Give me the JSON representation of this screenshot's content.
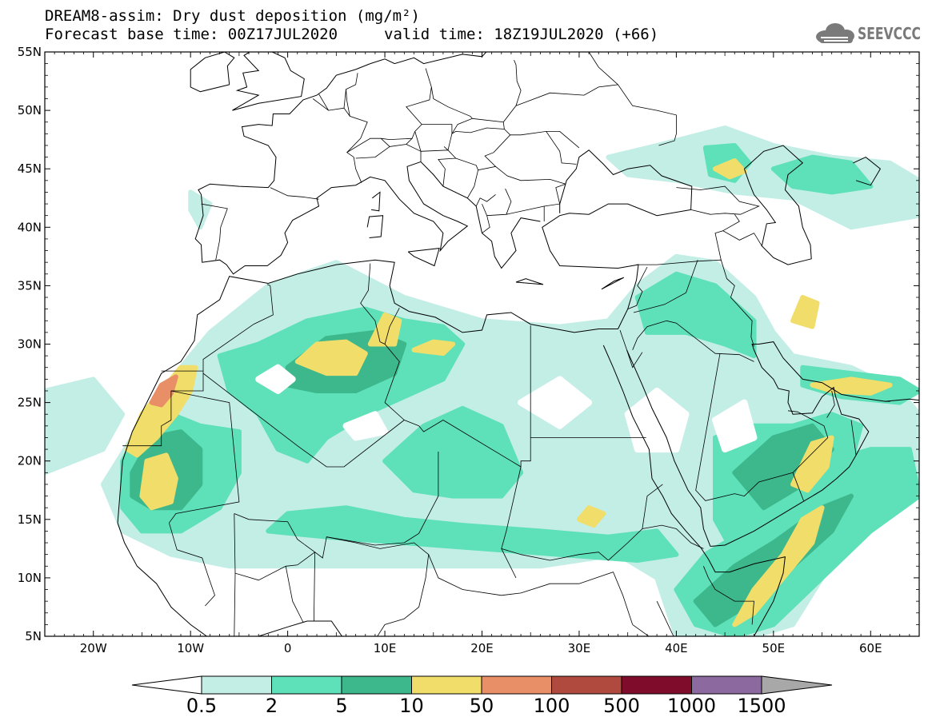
{
  "header": {
    "title_line1": "DREAM8-assim: Dry dust deposition (mg/m²)",
    "base_time": "Forecast base time: 00Z17JUL2020",
    "valid_time": "valid time: 18Z19JUL2020 (+66)",
    "logo_text": "SEEVCCC",
    "logo_icon": "cloud-icon"
  },
  "map": {
    "lon_range": [
      -25,
      65
    ],
    "lat_range": [
      5,
      55
    ],
    "lat_labels": [
      "55N",
      "50N",
      "45N",
      "40N",
      "35N",
      "30N",
      "25N",
      "20N",
      "15N",
      "10N",
      "5N"
    ],
    "lon_labels": [
      "20W",
      "10W",
      "0",
      "10E",
      "20E",
      "30E",
      "40E",
      "50E",
      "60E"
    ],
    "lat_values": [
      55,
      50,
      45,
      40,
      35,
      30,
      25,
      20,
      15,
      10,
      5
    ],
    "lon_values": [
      -20,
      -10,
      0,
      10,
      20,
      30,
      40,
      50,
      60
    ]
  },
  "colorbar": {
    "labels": [
      "0.5",
      "2",
      "5",
      "10",
      "50",
      "100",
      "500",
      "1000",
      "1500"
    ],
    "colors": [
      "#c3eee6",
      "#5ee0b8",
      "#3db88c",
      "#f1de6a",
      "#e88f68",
      "#b04a3e",
      "#7e0c2a",
      "#8c6aa0"
    ],
    "under_color": "#ffffff",
    "over_color": "#a8a8a8"
  },
  "dust_levels": [
    "#c3eee6",
    "#5ee0b8",
    "#3db88c",
    "#f1de6a",
    "#e88f68"
  ]
}
